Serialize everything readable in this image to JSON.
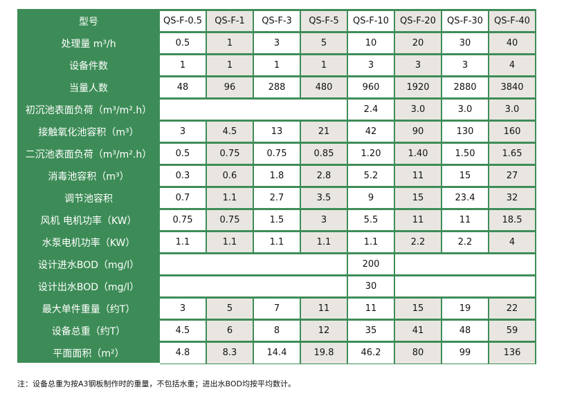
{
  "columns": [
    "型号",
    "QS-F-0.5",
    "QS-F-1",
    "QS-F-3",
    "QS-F-5",
    "QS-F-10",
    "QS-F-20",
    "QS-F-30",
    "QS-F-40"
  ],
  "rows": [
    {
      "label": "处理量 m³/h",
      "values": [
        "0.5",
        "1",
        "3",
        "5",
        "10",
        "20",
        "30",
        "40"
      ]
    },
    {
      "label": "设备件数",
      "values": [
        "1",
        "1",
        "1",
        "1",
        "3",
        "3",
        "3",
        "4"
      ]
    },
    {
      "label": "当量人数",
      "values": [
        "48",
        "96",
        "288",
        "480",
        "960",
        "1920",
        "2880",
        "3840"
      ]
    },
    {
      "label": "初沉池表面负荷（m³/m².h）",
      "values": [
        "",
        "",
        "",
        "",
        "2.4",
        "3.0",
        "3.0",
        "3.0"
      ]
    },
    {
      "label": "接触氧化池容积（m³）",
      "values": [
        "3",
        "4.5",
        "13",
        "21",
        "42",
        "90",
        "130",
        "160"
      ]
    },
    {
      "label": "二沉池表面负荷（m³/m².h）",
      "values": [
        "0.5",
        "0.75",
        "0.75",
        "0.85",
        "1.20",
        "1.40",
        "1.50",
        "1.65"
      ]
    },
    {
      "label": "消毒池容积（m³）",
      "values": [
        "0.3",
        "0.6",
        "1.8",
        "2.8",
        "5.2",
        "11",
        "15",
        "27"
      ]
    },
    {
      "label": "调节池容积",
      "values": [
        "0.7",
        "1.1",
        "2.7",
        "3.5",
        "9",
        "15",
        "23.4",
        "32"
      ]
    },
    {
      "label": "风机 电机功率（KW）",
      "values": [
        "0.75",
        "0.75",
        "1.5",
        "3",
        "5.5",
        "11",
        "11",
        "18.5"
      ]
    },
    {
      "label": "水泵电机功率（KW）",
      "values": [
        "1.1",
        "1.1",
        "1.1",
        "1.1",
        "1.1",
        "2.2",
        "2.2",
        "4"
      ]
    },
    {
      "label": "设计进水BOD（mg/l）",
      "values": [
        "",
        "",
        "",
        "",
        "200",
        "",
        "",
        ""
      ]
    },
    {
      "label": "设计出水BOD（mg/l）",
      "values": [
        "",
        "",
        "",
        "",
        "30",
        "",
        "",
        ""
      ]
    },
    {
      "label": "最大单件重量（约T）",
      "values": [
        "3",
        "5",
        "7",
        "11",
        "11",
        "15",
        "19",
        "22"
      ]
    },
    {
      "label": "设备总重（约T）",
      "values": [
        "4.5",
        "6",
        "8",
        "12",
        "35",
        "41",
        "48",
        "59"
      ]
    },
    {
      "label": "平面面积（m²）",
      "values": [
        "4.8",
        "8.3",
        "14.4",
        "19.8",
        "46.2",
        "80",
        "99",
        "136"
      ]
    }
  ],
  "note": "注：设备总重为按A3钢板制作时的重量，不包括水重；进出水BOD均按平均数计。",
  "colors": {
    "header_green": "#3d8c57",
    "shade": "#e9e6e1"
  }
}
